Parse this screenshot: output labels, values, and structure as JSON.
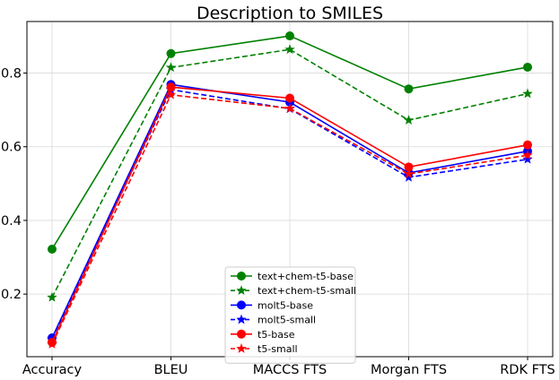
{
  "chart_data": {
    "type": "line",
    "title": "Description to SMILES",
    "xlabel": "",
    "ylabel": "",
    "categories": [
      "Accuracy",
      "BLEU",
      "MACCS FTS",
      "Morgan FTS",
      "RDK FTS"
    ],
    "yticks": [
      0.2,
      0.4,
      0.6,
      0.8
    ],
    "ylim": [
      0.03,
      0.94
    ],
    "grid": true,
    "legend_position": "bottom-center",
    "series": [
      {
        "name": "text+chem-t5-base",
        "color": "#008000",
        "dash": "solid",
        "marker": "circle",
        "values": [
          0.322,
          0.853,
          0.901,
          0.757,
          0.816
        ]
      },
      {
        "name": "text+chem-t5-small",
        "color": "#008000",
        "dash": "dashed",
        "marker": "star",
        "values": [
          0.191,
          0.815,
          0.864,
          0.672,
          0.744
        ]
      },
      {
        "name": "molt5-base",
        "color": "#0000ff",
        "dash": "solid",
        "marker": "circle",
        "values": [
          0.081,
          0.769,
          0.721,
          0.529,
          0.588
        ]
      },
      {
        "name": "molt5-small",
        "color": "#0000ff",
        "dash": "dashed",
        "marker": "star",
        "values": [
          0.079,
          0.755,
          0.703,
          0.517,
          0.566
        ]
      },
      {
        "name": "t5-base",
        "color": "#ff0000",
        "dash": "solid",
        "marker": "circle",
        "values": [
          0.069,
          0.762,
          0.732,
          0.545,
          0.605
        ]
      },
      {
        "name": "t5-small",
        "color": "#ff0000",
        "dash": "dashed",
        "marker": "star",
        "values": [
          0.064,
          0.741,
          0.704,
          0.526,
          0.577
        ]
      }
    ]
  }
}
